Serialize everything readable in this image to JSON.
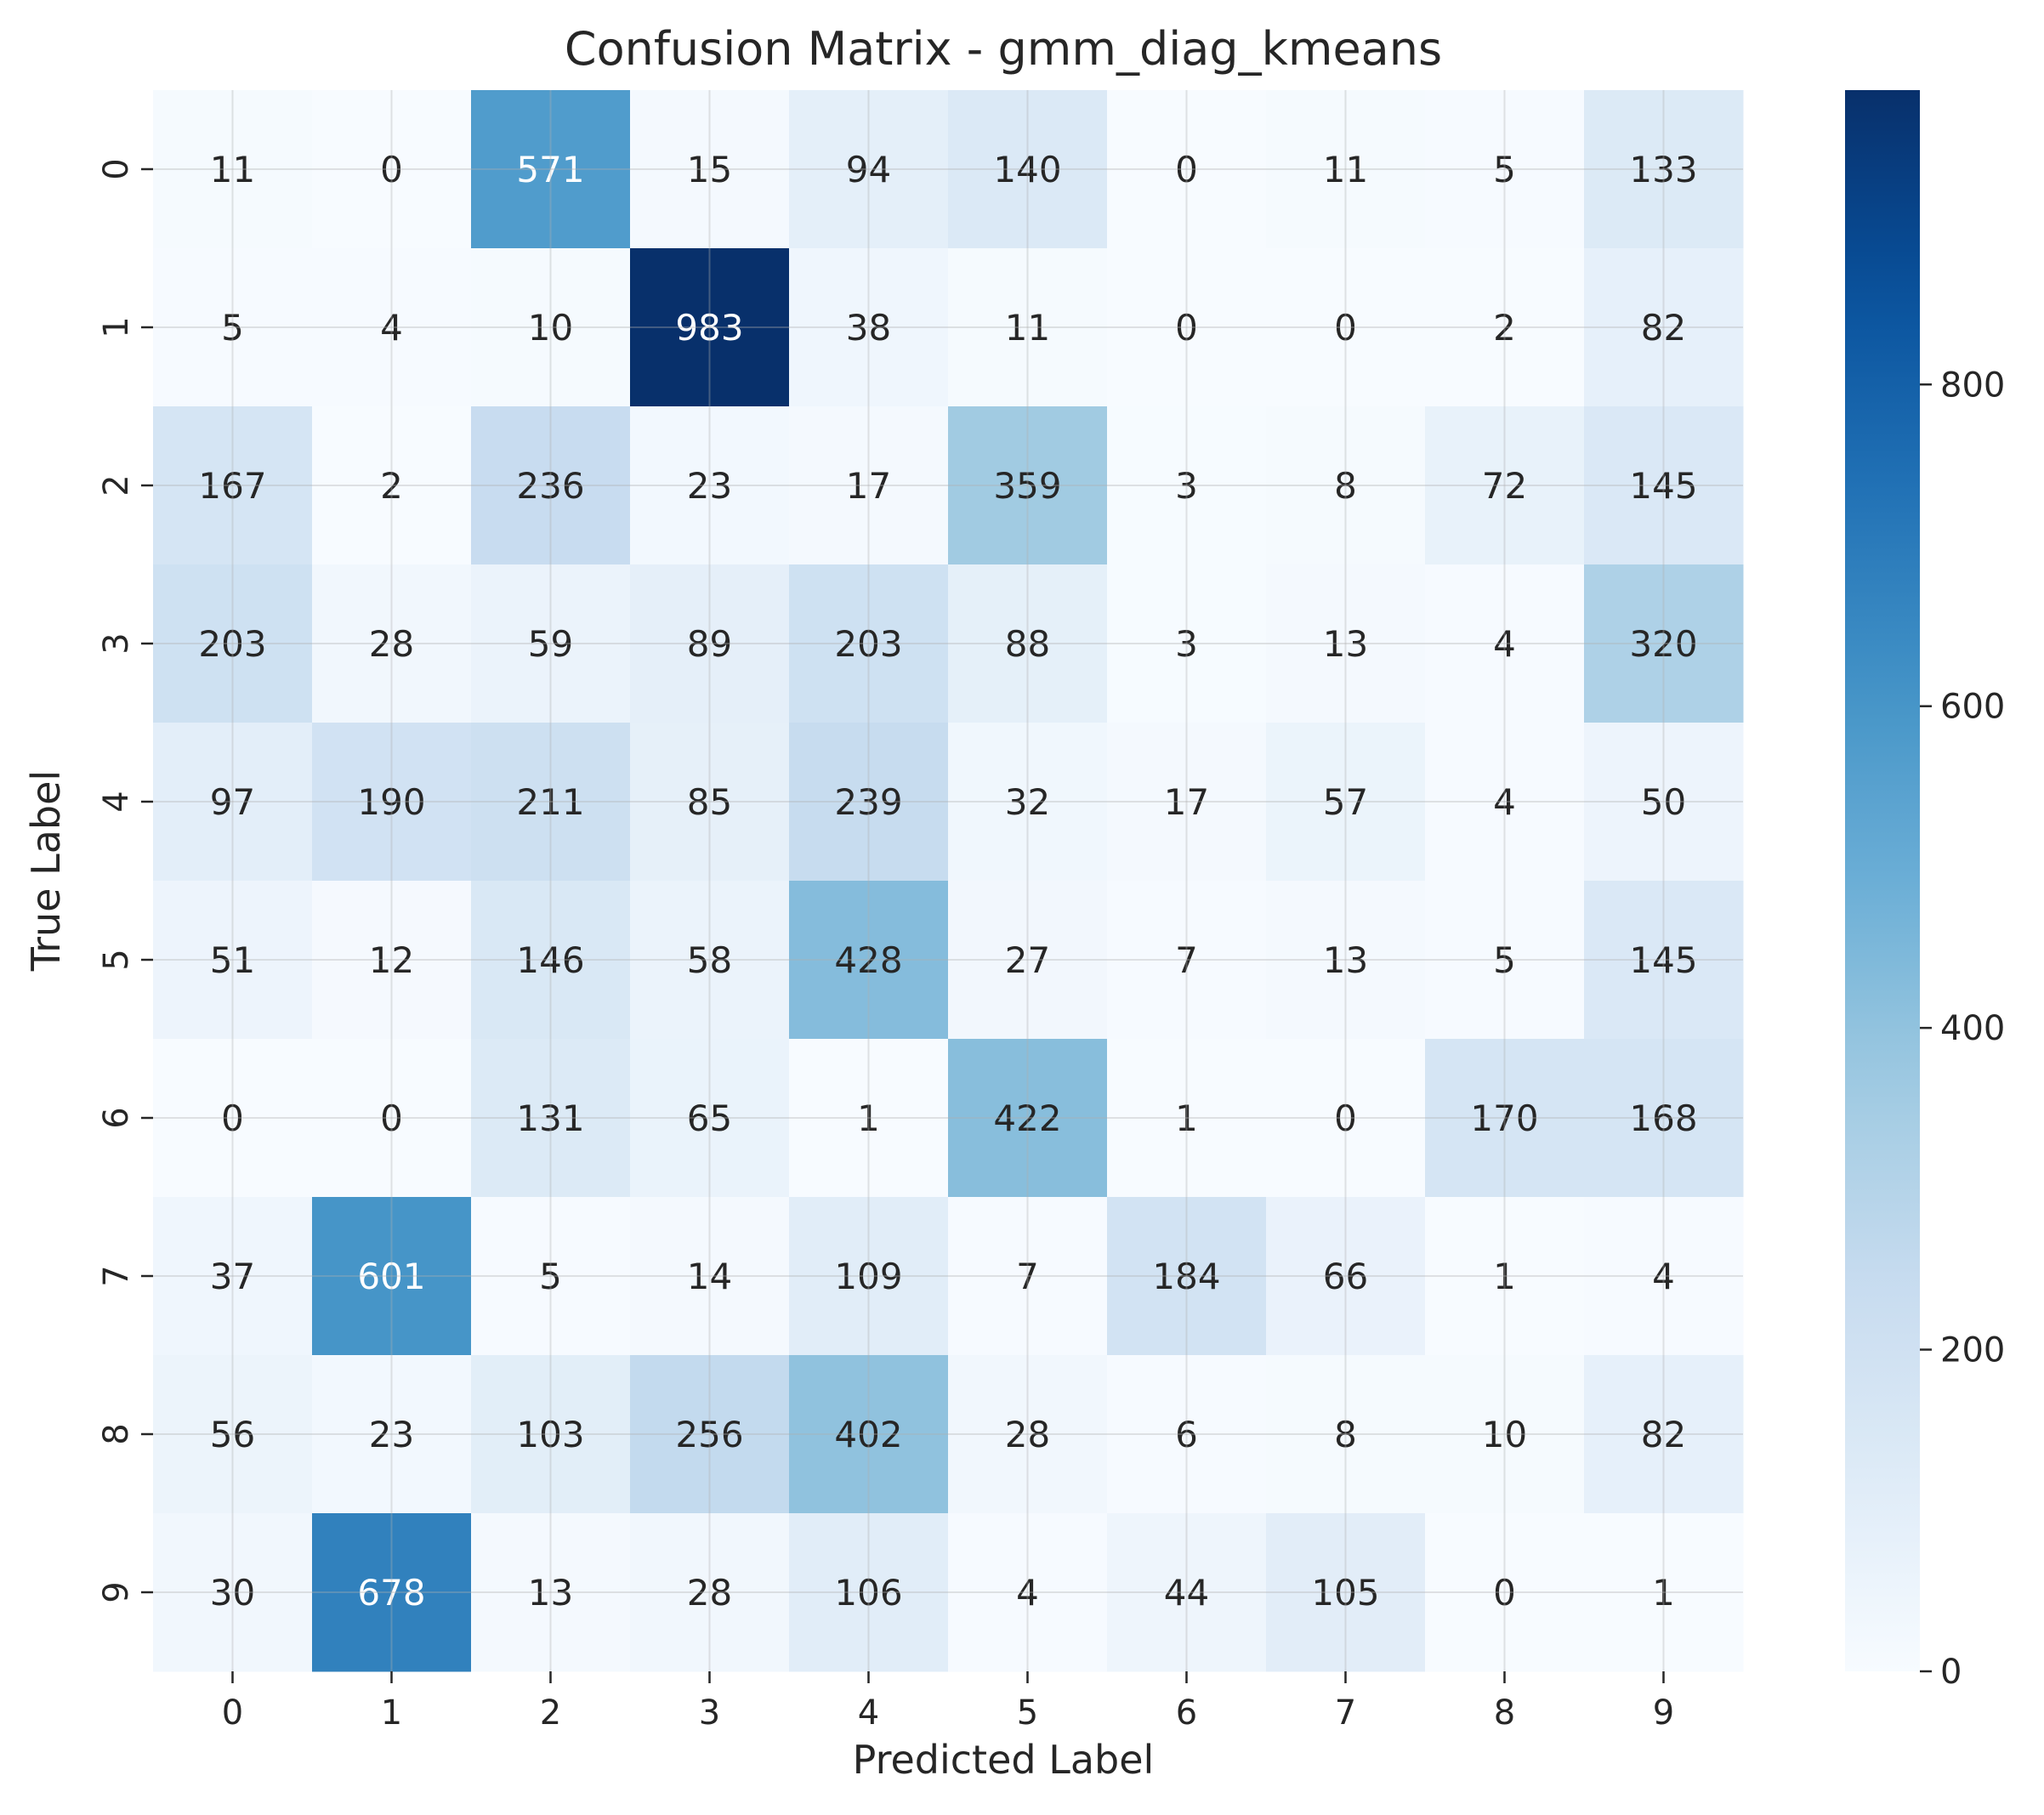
{
  "chart_data": {
    "type": "heatmap",
    "title": "Confusion Matrix - gmm_diag_kmeans",
    "xlabel": "Predicted Label",
    "ylabel": "True Label",
    "x_categories": [
      "0",
      "1",
      "2",
      "3",
      "4",
      "5",
      "6",
      "7",
      "8",
      "9"
    ],
    "y_categories": [
      "0",
      "1",
      "2",
      "3",
      "4",
      "5",
      "6",
      "7",
      "8",
      "9"
    ],
    "values": [
      [
        11,
        0,
        571,
        15,
        94,
        140,
        0,
        11,
        5,
        133
      ],
      [
        5,
        4,
        10,
        983,
        38,
        11,
        0,
        0,
        2,
        82
      ],
      [
        167,
        2,
        236,
        23,
        17,
        359,
        3,
        8,
        72,
        145
      ],
      [
        203,
        28,
        59,
        89,
        203,
        88,
        3,
        13,
        4,
        320
      ],
      [
        97,
        190,
        211,
        85,
        239,
        32,
        17,
        57,
        4,
        50
      ],
      [
        51,
        12,
        146,
        58,
        428,
        27,
        7,
        13,
        5,
        145
      ],
      [
        0,
        0,
        131,
        65,
        1,
        422,
        1,
        0,
        170,
        168
      ],
      [
        37,
        601,
        5,
        14,
        109,
        7,
        184,
        66,
        1,
        4
      ],
      [
        56,
        23,
        103,
        256,
        402,
        28,
        6,
        8,
        10,
        82
      ],
      [
        30,
        678,
        13,
        28,
        106,
        4,
        44,
        105,
        0,
        1
      ]
    ],
    "colorscale": "Blues",
    "colorbar": {
      "min": 0,
      "max": 983,
      "ticks": [
        0,
        200,
        400,
        600,
        800
      ]
    },
    "grid": true
  }
}
